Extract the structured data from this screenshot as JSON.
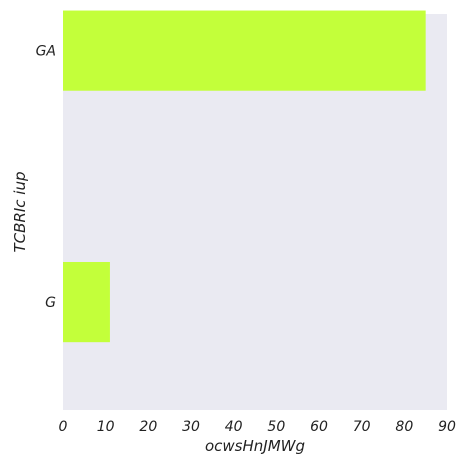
{
  "chart_data": {
    "type": "bar",
    "orientation": "horizontal",
    "categories": [
      "GA",
      "G"
    ],
    "values": [
      85,
      11
    ],
    "xlabel": "ocwsHnJMWg",
    "ylabel": "TCBRIc iup",
    "xlim": [
      0,
      90
    ],
    "xticks": [
      0,
      10,
      20,
      30,
      40,
      50,
      60,
      70,
      80,
      90
    ],
    "grid": false,
    "colors": {
      "bar": "#c3ff3a",
      "plot_background": "#eaeaf2"
    }
  }
}
